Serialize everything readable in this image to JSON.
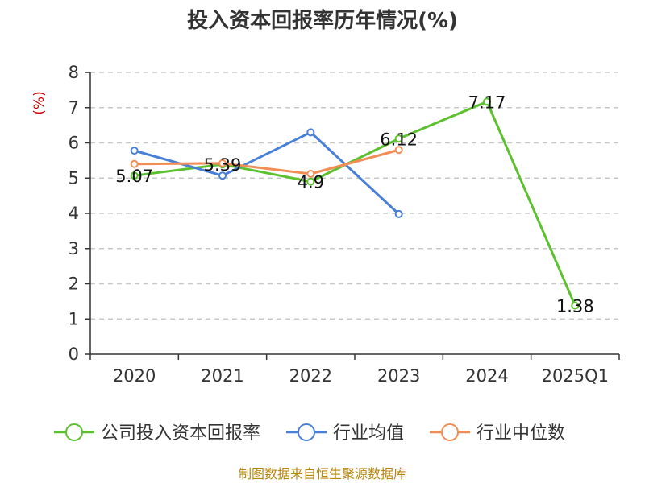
{
  "title": "投入资本回报率历年情况(%)",
  "source": "制图数据来自恒生聚源数据库",
  "colors": {
    "series": [
      "#5cc12e",
      "#4a7fd6",
      "#f28e55"
    ],
    "grid": "#c8c8c8",
    "axis": "#333333"
  },
  "chart_data": {
    "type": "line",
    "title": "投入资本回报率历年情况(%)",
    "ylabel": "(%)",
    "xlabel": "",
    "categories": [
      "2020",
      "2021",
      "2022",
      "2023",
      "2024",
      "2025Q1"
    ],
    "ylim": [
      0,
      8
    ],
    "yticks": [
      "0",
      "1",
      "2",
      "3",
      "4",
      "5",
      "6",
      "7",
      "8"
    ],
    "grid": "horizontal-dashed",
    "legend": "bottom",
    "series": [
      {
        "name": "公司投入资本回报率",
        "values": [
          5.07,
          5.39,
          4.9,
          6.12,
          7.17,
          1.38
        ],
        "labels": [
          "5.07",
          "5.39",
          "4.9",
          "6.12",
          "7.17",
          "1.38"
        ]
      },
      {
        "name": "行业均值",
        "values": [
          5.78,
          5.07,
          6.3,
          3.98,
          null,
          null
        ]
      },
      {
        "name": "行业中位数",
        "values": [
          5.4,
          5.42,
          5.12,
          5.8,
          null,
          null
        ]
      }
    ]
  }
}
